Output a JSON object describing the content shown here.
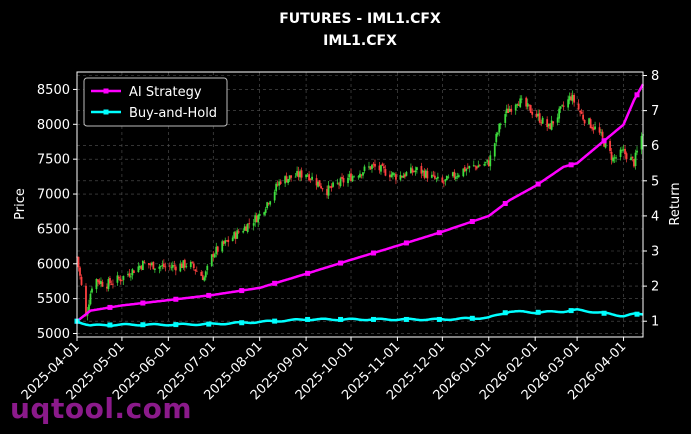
{
  "watermark": "uqtool.com",
  "colors": {
    "background": "#000000",
    "grid": "#555555",
    "up_candle": "#3ddc3d",
    "down_candle": "#ff4040",
    "ai_strategy": "#ff00ff",
    "buy_and_hold": "#00ffff",
    "text": "#ffffff"
  },
  "chart_data": {
    "type": "candlestick+line",
    "title": "FUTURES - IML1.CFX",
    "subtitle": "IML1.CFX",
    "xlabel": "",
    "ylabel_left": "Price",
    "ylabel_right": "Return",
    "x_range": [
      "2025-04-01",
      "2026-04-14"
    ],
    "ylim_left": [
      4950,
      8750
    ],
    "ylim_right": [
      0.55,
      8.1
    ],
    "y_ticks_left": [
      5000,
      5500,
      6000,
      6500,
      7000,
      7500,
      8000,
      8500
    ],
    "y_ticks_right": [
      1,
      2,
      3,
      4,
      5,
      6,
      7,
      8
    ],
    "x_ticks": [
      "2025-04-01",
      "2025-05-01",
      "2025-06-01",
      "2025-07-01",
      "2025-08-01",
      "2025-09-01",
      "2025-10-01",
      "2025-11-01",
      "2025-12-01",
      "2026-01-01",
      "2026-02-01",
      "2026-03-01",
      "2026-04-01"
    ],
    "grid": true,
    "legend_position": "top-left",
    "series": [
      {
        "name": "AI Strategy",
        "axis": "right",
        "x": [
          "2025-04-01",
          "2025-04-10",
          "2025-05-01",
          "2025-06-01",
          "2025-07-01",
          "2025-08-01",
          "2025-09-01",
          "2025-10-01",
          "2025-11-01",
          "2025-12-01",
          "2026-01-01",
          "2026-01-15",
          "2026-02-01",
          "2026-02-20",
          "2026-03-01",
          "2026-03-15",
          "2026-04-01",
          "2026-04-08",
          "2026-04-14"
        ],
        "values": [
          1.0,
          1.3,
          1.45,
          1.6,
          1.75,
          1.95,
          2.35,
          2.75,
          3.15,
          3.55,
          4.0,
          4.45,
          4.85,
          5.4,
          5.5,
          6.0,
          6.6,
          7.3,
          7.75
        ]
      },
      {
        "name": "Buy-and-Hold",
        "axis": "right",
        "x": [
          "2025-04-01",
          "2025-04-10",
          "2025-05-01",
          "2025-06-01",
          "2025-07-01",
          "2025-08-01",
          "2025-09-01",
          "2025-10-01",
          "2025-11-01",
          "2025-12-01",
          "2026-01-01",
          "2026-01-15",
          "2026-02-01",
          "2026-02-20",
          "2026-03-01",
          "2026-03-15",
          "2026-04-01",
          "2026-04-08",
          "2026-04-14"
        ],
        "values": [
          1.0,
          0.88,
          0.9,
          0.9,
          0.92,
          0.98,
          1.05,
          1.05,
          1.05,
          1.05,
          1.1,
          1.28,
          1.25,
          1.28,
          1.32,
          1.25,
          1.15,
          1.2,
          1.2
        ]
      }
    ],
    "price_path": {
      "name": "Price",
      "axis": "left",
      "x": [
        "2025-04-01",
        "2025-04-07",
        "2025-04-12",
        "2025-04-20",
        "2025-05-01",
        "2025-05-15",
        "2025-06-01",
        "2025-06-15",
        "2025-06-25",
        "2025-07-01",
        "2025-07-15",
        "2025-08-01",
        "2025-08-15",
        "2025-09-01",
        "2025-09-15",
        "2025-10-01",
        "2025-10-15",
        "2025-11-01",
        "2025-11-15",
        "2025-12-01",
        "2025-12-15",
        "2026-01-01",
        "2026-01-10",
        "2026-01-20",
        "2026-02-01",
        "2026-02-10",
        "2026-02-25",
        "2026-03-05",
        "2026-03-15",
        "2026-03-25",
        "2026-04-01",
        "2026-04-08",
        "2026-04-14"
      ],
      "values": [
        6100,
        5250,
        5800,
        5700,
        5800,
        6000,
        5950,
        6000,
        5800,
        6150,
        6400,
        6700,
        7200,
        7300,
        7050,
        7250,
        7400,
        7250,
        7350,
        7150,
        7350,
        7450,
        8100,
        8350,
        8150,
        7950,
        8400,
        8100,
        7900,
        7500,
        7600,
        7450,
        7900
      ]
    }
  }
}
